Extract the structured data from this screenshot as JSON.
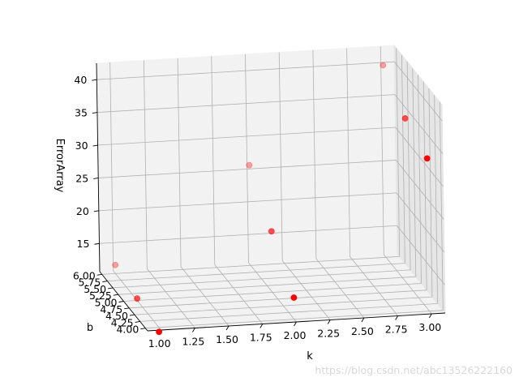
{
  "chart_data": {
    "type": "scatter",
    "projection": "3d",
    "xlabel": "k",
    "ylabel": "b",
    "zlabel": "ErrorArray",
    "x_ticks": [
      "1.00",
      "1.25",
      "1.50",
      "1.75",
      "2.00",
      "2.25",
      "2.50",
      "2.75",
      "3.00"
    ],
    "y_ticks": [
      "4.00",
      "4.25",
      "4.50",
      "4.75",
      "5.00",
      "5.25",
      "5.50",
      "5.75",
      "6.00"
    ],
    "z_ticks": [
      "15",
      "20",
      "25",
      "30",
      "35",
      "40"
    ],
    "xlim": [
      0.9,
      3.1
    ],
    "ylim": [
      3.9,
      6.1
    ],
    "zlim": [
      10.7,
      42.5
    ],
    "grid": true,
    "marker_color": "#ff0000",
    "points": [
      {
        "x": 1,
        "y": 4,
        "z": 10
      },
      {
        "x": 1,
        "y": 5,
        "z": 11
      },
      {
        "x": 1,
        "y": 6,
        "z": 12
      },
      {
        "x": 2,
        "y": 4,
        "z": 14
      },
      {
        "x": 2,
        "y": 5,
        "z": 20
      },
      {
        "x": 2,
        "y": 6,
        "z": 26
      },
      {
        "x": 3,
        "y": 4,
        "z": 34
      },
      {
        "x": 3,
        "y": 5,
        "z": 36
      },
      {
        "x": 3,
        "y": 6,
        "z": 40
      }
    ]
  },
  "watermark": "https://blog.csdn.net/abc13526222160"
}
